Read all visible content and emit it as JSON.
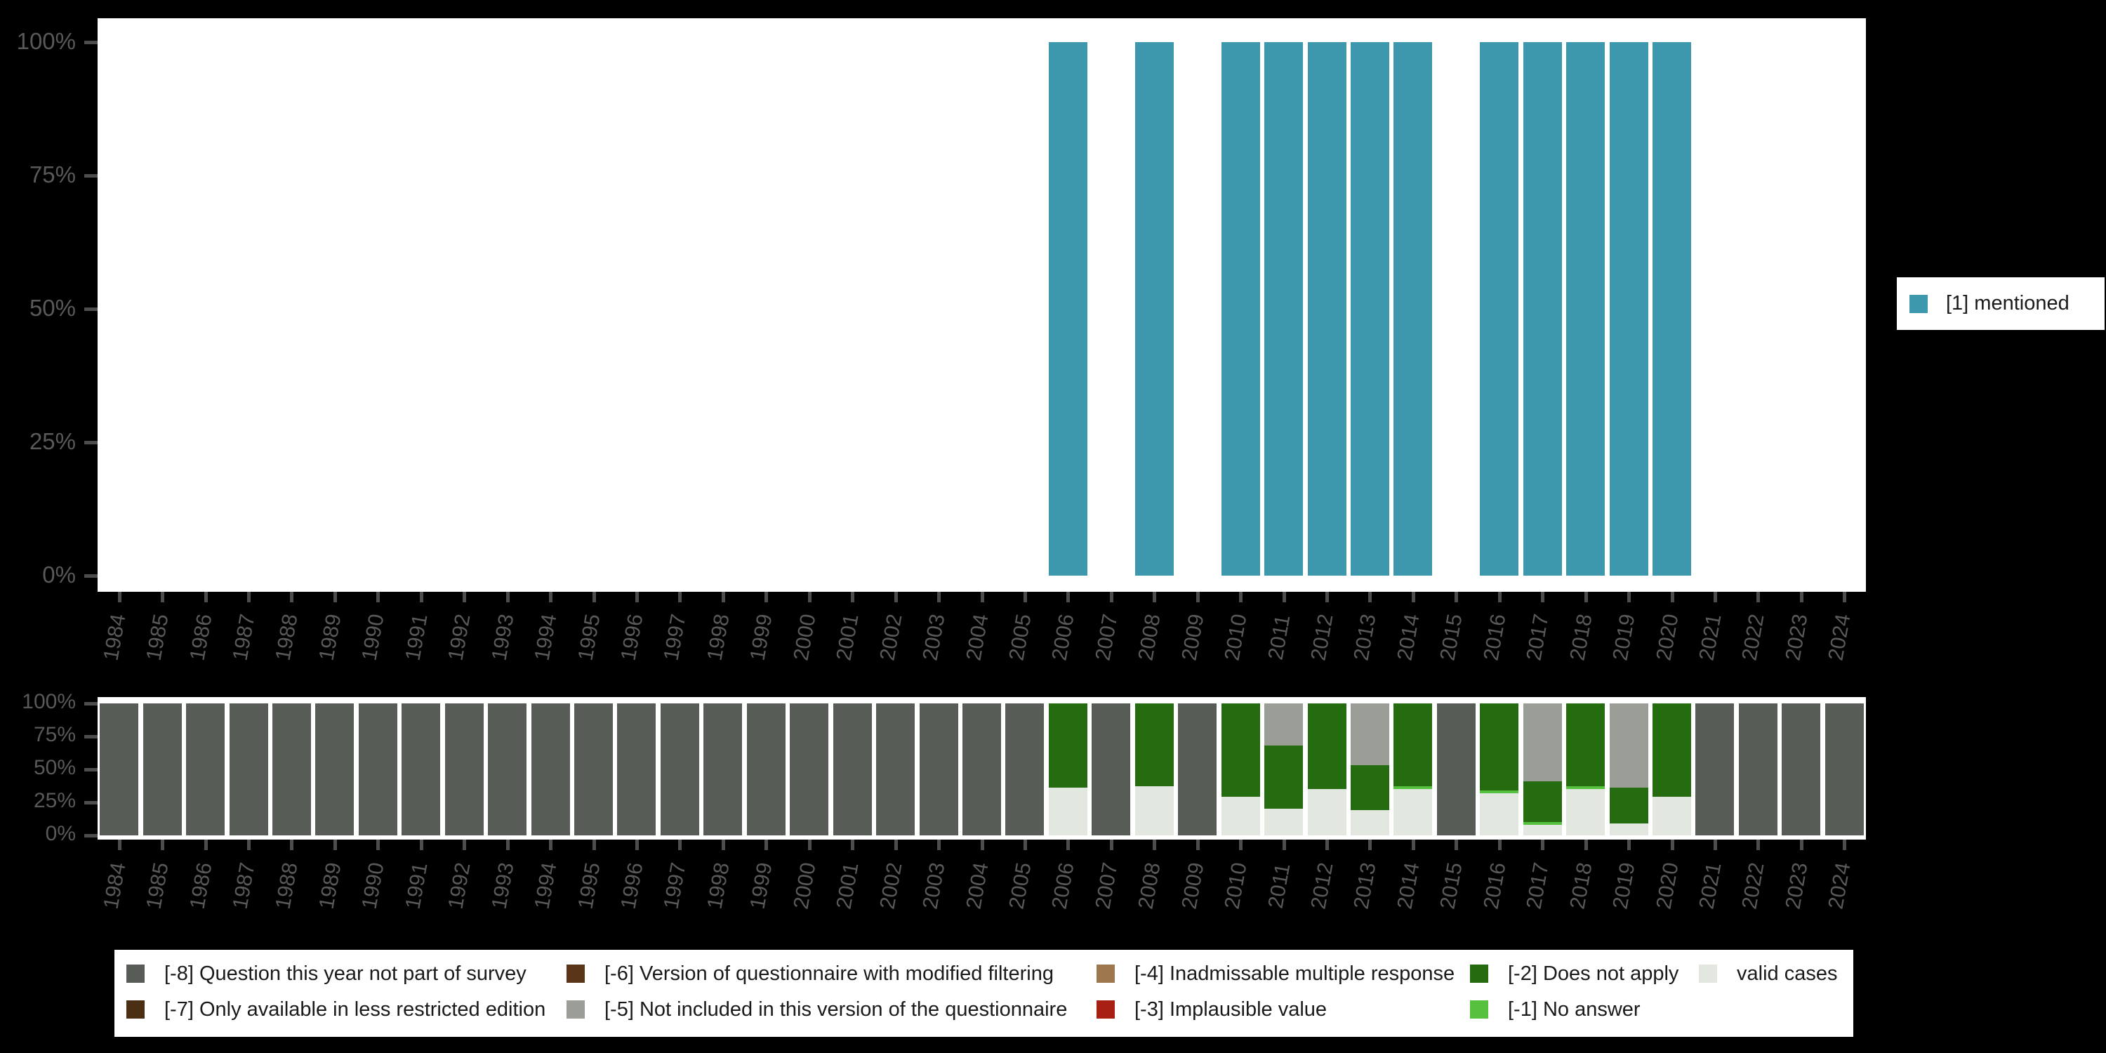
{
  "background_color": "#000000",
  "axis_text_color": "#595959",
  "tick_color": "#4d4d4d",
  "chart_data": [
    {
      "type": "bar",
      "title": "",
      "xlabel": "",
      "ylabel": "",
      "ylim": [
        0,
        100
      ],
      "grid": false,
      "categories": [
        "1984",
        "1985",
        "1986",
        "1987",
        "1988",
        "1989",
        "1990",
        "1991",
        "1992",
        "1993",
        "1994",
        "1995",
        "1996",
        "1997",
        "1998",
        "1999",
        "2000",
        "2001",
        "2002",
        "2003",
        "2004",
        "2005",
        "2006",
        "2007",
        "2008",
        "2009",
        "2010",
        "2011",
        "2012",
        "2013",
        "2014",
        "2015",
        "2016",
        "2017",
        "2018",
        "2019",
        "2020",
        "2021",
        "2022",
        "2023",
        "2024"
      ],
      "values": [
        0,
        0,
        0,
        0,
        0,
        0,
        0,
        0,
        0,
        0,
        0,
        0,
        0,
        0,
        0,
        0,
        0,
        0,
        0,
        0,
        0,
        0,
        100,
        0,
        100,
        0,
        100,
        100,
        100,
        100,
        100,
        0,
        100,
        100,
        100,
        100,
        100,
        0,
        0,
        0,
        0
      ],
      "bar_color": "#3d98ae",
      "yticks": [
        {
          "v": 0,
          "label": "0%"
        },
        {
          "v": 25,
          "label": "25%"
        },
        {
          "v": 50,
          "label": "50%"
        },
        {
          "v": 75,
          "label": "75%"
        },
        {
          "v": 100,
          "label": "100%"
        }
      ],
      "legend": {
        "position": "right",
        "label": "[1] mentioned",
        "color": "#3d98ae"
      }
    },
    {
      "type": "stacked-bar",
      "title": "",
      "xlabel": "",
      "ylabel": "",
      "ylim": [
        0,
        100
      ],
      "grid": false,
      "categories": [
        "1984",
        "1985",
        "1986",
        "1987",
        "1988",
        "1989",
        "1990",
        "1991",
        "1992",
        "1993",
        "1994",
        "1995",
        "1996",
        "1997",
        "1998",
        "1999",
        "2000",
        "2001",
        "2002",
        "2003",
        "2004",
        "2005",
        "2006",
        "2007",
        "2008",
        "2009",
        "2010",
        "2011",
        "2012",
        "2013",
        "2014",
        "2015",
        "2016",
        "2017",
        "2018",
        "2019",
        "2020",
        "2021",
        "2022",
        "2023",
        "2024"
      ],
      "series": [
        {
          "name": "valid cases",
          "color": "#e2e7e0",
          "values": [
            0,
            0,
            0,
            0,
            0,
            0,
            0,
            0,
            0,
            0,
            0,
            0,
            0,
            0,
            0,
            0,
            0,
            0,
            0,
            0,
            0,
            0,
            36,
            0,
            37,
            0,
            29,
            20,
            35,
            19,
            35,
            0,
            32,
            8,
            35,
            9,
            29,
            0,
            0,
            0,
            0
          ]
        },
        {
          "name": "[-1] No answer",
          "color": "#56c03f",
          "values": [
            0,
            0,
            0,
            0,
            0,
            0,
            0,
            0,
            0,
            0,
            0,
            0,
            0,
            0,
            0,
            0,
            0,
            0,
            0,
            0,
            0,
            0,
            0,
            0,
            0,
            0,
            0,
            0,
            0,
            0,
            2,
            0,
            2,
            2,
            2,
            0,
            0,
            0,
            0,
            0,
            0
          ]
        },
        {
          "name": "[-2] Does not apply",
          "color": "#256c10",
          "values": [
            0,
            0,
            0,
            0,
            0,
            0,
            0,
            0,
            0,
            0,
            0,
            0,
            0,
            0,
            0,
            0,
            0,
            0,
            0,
            0,
            0,
            0,
            64,
            0,
            63,
            0,
            71,
            48,
            65,
            34,
            63,
            0,
            66,
            31,
            63,
            27,
            71,
            0,
            0,
            0,
            0
          ]
        },
        {
          "name": "[-3] Implausible value",
          "color": "#a81f14",
          "values": [
            0,
            0,
            0,
            0,
            0,
            0,
            0,
            0,
            0,
            0,
            0,
            0,
            0,
            0,
            0,
            0,
            0,
            0,
            0,
            0,
            0,
            0,
            0,
            0,
            0,
            0,
            0,
            0,
            0,
            0,
            0,
            0,
            0,
            0,
            0,
            0,
            0,
            0,
            0,
            0,
            0
          ]
        },
        {
          "name": "[-4] Inadmissable multiple response",
          "color": "#9d774e",
          "values": [
            0,
            0,
            0,
            0,
            0,
            0,
            0,
            0,
            0,
            0,
            0,
            0,
            0,
            0,
            0,
            0,
            0,
            0,
            0,
            0,
            0,
            0,
            0,
            0,
            0,
            0,
            0,
            0,
            0,
            0,
            0,
            0,
            0,
            0,
            0,
            0,
            0,
            0,
            0,
            0,
            0
          ]
        },
        {
          "name": "[-5] Not included in this version of the questionnaire",
          "color": "#9a9e97",
          "values": [
            0,
            0,
            0,
            0,
            0,
            0,
            0,
            0,
            0,
            0,
            0,
            0,
            0,
            0,
            0,
            0,
            0,
            0,
            0,
            0,
            0,
            0,
            0,
            0,
            0,
            0,
            0,
            32,
            0,
            47,
            0,
            0,
            0,
            59,
            0,
            64,
            0,
            0,
            0,
            0,
            0
          ]
        },
        {
          "name": "[-6] Version of questionnaire with modified filtering",
          "color": "#5a3517",
          "values": [
            0,
            0,
            0,
            0,
            0,
            0,
            0,
            0,
            0,
            0,
            0,
            0,
            0,
            0,
            0,
            0,
            0,
            0,
            0,
            0,
            0,
            0,
            0,
            0,
            0,
            0,
            0,
            0,
            0,
            0,
            0,
            0,
            0,
            0,
            0,
            0,
            0,
            0,
            0,
            0,
            0
          ]
        },
        {
          "name": "[-7] Only available in less restricted edition",
          "color": "#4a2f15",
          "values": [
            0,
            0,
            0,
            0,
            0,
            0,
            0,
            0,
            0,
            0,
            0,
            0,
            0,
            0,
            0,
            0,
            0,
            0,
            0,
            0,
            0,
            0,
            0,
            0,
            0,
            0,
            0,
            0,
            0,
            0,
            0,
            0,
            0,
            0,
            0,
            0,
            0,
            0,
            0,
            0,
            0
          ]
        },
        {
          "name": "[-8] Question this year not part of survey",
          "color": "#575d56",
          "values": [
            100,
            100,
            100,
            100,
            100,
            100,
            100,
            100,
            100,
            100,
            100,
            100,
            100,
            100,
            100,
            100,
            100,
            100,
            100,
            100,
            100,
            100,
            0,
            100,
            0,
            100,
            0,
            0,
            0,
            0,
            0,
            100,
            0,
            0,
            0,
            0,
            0,
            100,
            100,
            100,
            100
          ]
        }
      ],
      "yticks": [
        {
          "v": 0,
          "label": "0%"
        },
        {
          "v": 25,
          "label": "25%"
        },
        {
          "v": 50,
          "label": "50%"
        },
        {
          "v": 75,
          "label": "75%"
        },
        {
          "v": 100,
          "label": "100%"
        }
      ],
      "legend": {
        "position": "bottom",
        "items": [
          {
            "label": "[-8] Question this year not part of survey",
            "color": "#575d56",
            "col": 0,
            "row": 0
          },
          {
            "label": "[-7] Only available in less restricted edition",
            "color": "#4a2f15",
            "col": 0,
            "row": 1
          },
          {
            "label": "[-6] Version of questionnaire with modified filtering",
            "color": "#5a3517",
            "col": 1,
            "row": 0
          },
          {
            "label": "[-5] Not included in this version of the questionnaire",
            "color": "#9a9e97",
            "col": 1,
            "row": 1
          },
          {
            "label": "[-4] Inadmissable multiple response",
            "color": "#9d774e",
            "col": 2,
            "row": 0
          },
          {
            "label": "[-3] Implausible value",
            "color": "#a81f14",
            "col": 2,
            "row": 1
          },
          {
            "label": "[-2] Does not apply",
            "color": "#256c10",
            "col": 3,
            "row": 0
          },
          {
            "label": "[-1] No answer",
            "color": "#56c03f",
            "col": 3,
            "row": 1
          },
          {
            "label": "valid cases",
            "color": "#e2e7e0",
            "col": 4,
            "row": 0
          }
        ]
      }
    }
  ]
}
